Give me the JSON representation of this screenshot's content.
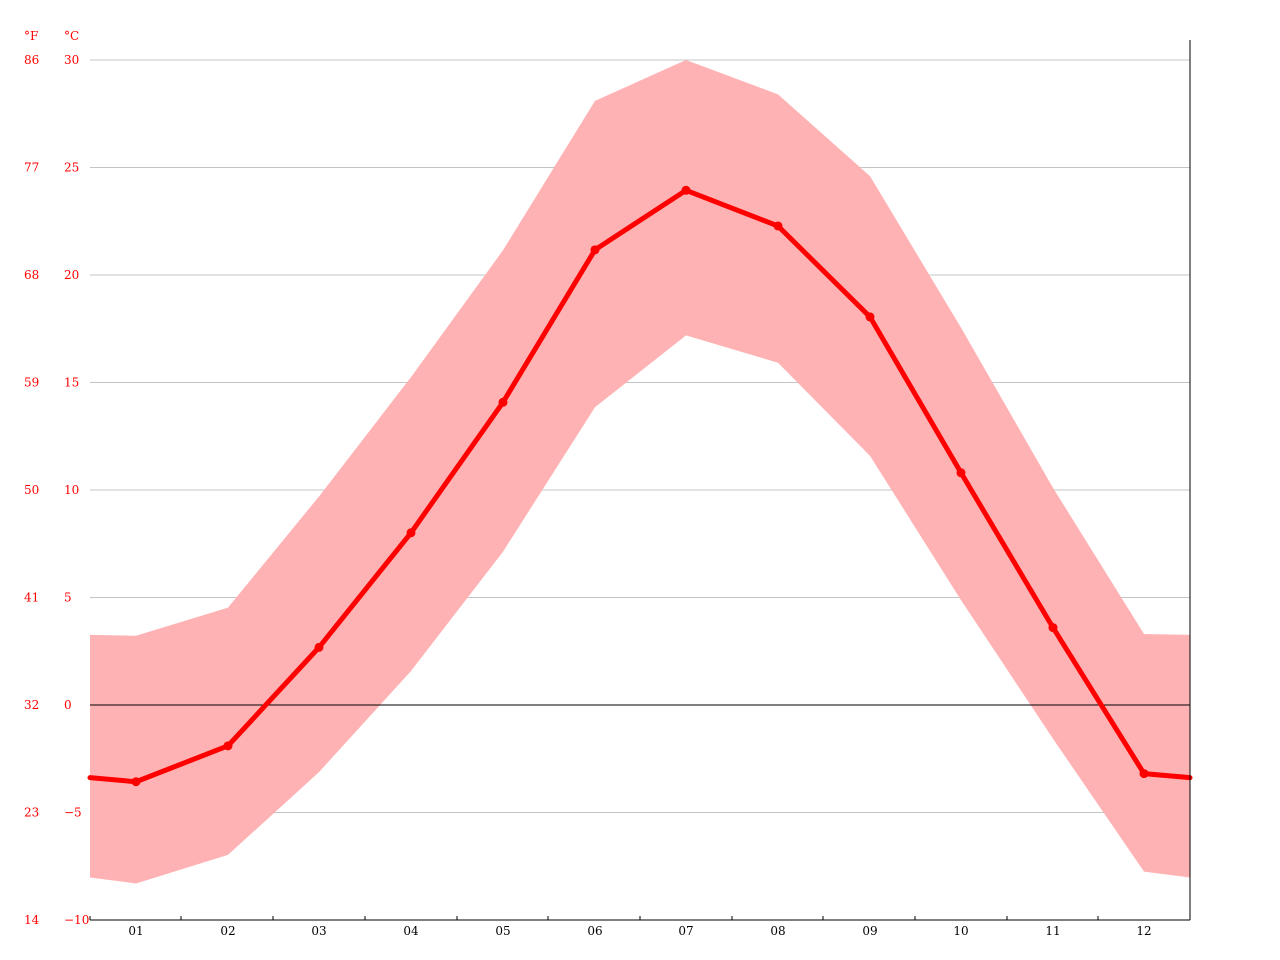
{
  "chart_data": {
    "type": "area",
    "title": "",
    "units": {
      "fahrenheit": "°F",
      "celsius": "°C"
    },
    "categories": [
      "01",
      "02",
      "03",
      "04",
      "05",
      "06",
      "07",
      "08",
      "09",
      "10",
      "11",
      "12"
    ],
    "series": [
      {
        "values": [
          -3.57,
          -1.9,
          2.68,
          8.01,
          14.08,
          21.17,
          23.94,
          22.28,
          18.05,
          10.8,
          3.6,
          -3.19
        ]
      },
      {
        "values": [
          3.22,
          4.53,
          9.7,
          15.25,
          21.15,
          28.1,
          30.0,
          28.4,
          24.6,
          17.55,
          10.1,
          3.3
        ]
      },
      {
        "values": [
          -8.3,
          -6.97,
          -3.12,
          1.58,
          7.13,
          13.85,
          17.19,
          15.92,
          11.59,
          4.88,
          -1.57,
          -7.75
        ]
      }
    ],
    "ylim": [
      -10,
      30
    ],
    "celsius_ticks": [
      "−10",
      "−5",
      "0",
      "5",
      "10",
      "15",
      "20",
      "25",
      "30"
    ],
    "celsius_tick_values": [
      -10,
      -5,
      0,
      5,
      10,
      15,
      20,
      25,
      30
    ],
    "fahrenheit_ticks": [
      "14",
      "23",
      "32",
      "41",
      "50",
      "59",
      "68",
      "77",
      "86"
    ],
    "grid": true,
    "colors": {
      "line": "#ff0000",
      "band": "#ffb2b4",
      "axis_text": "#ff0000",
      "grid": "#c4c4c4",
      "zero_line": "#000000"
    }
  }
}
